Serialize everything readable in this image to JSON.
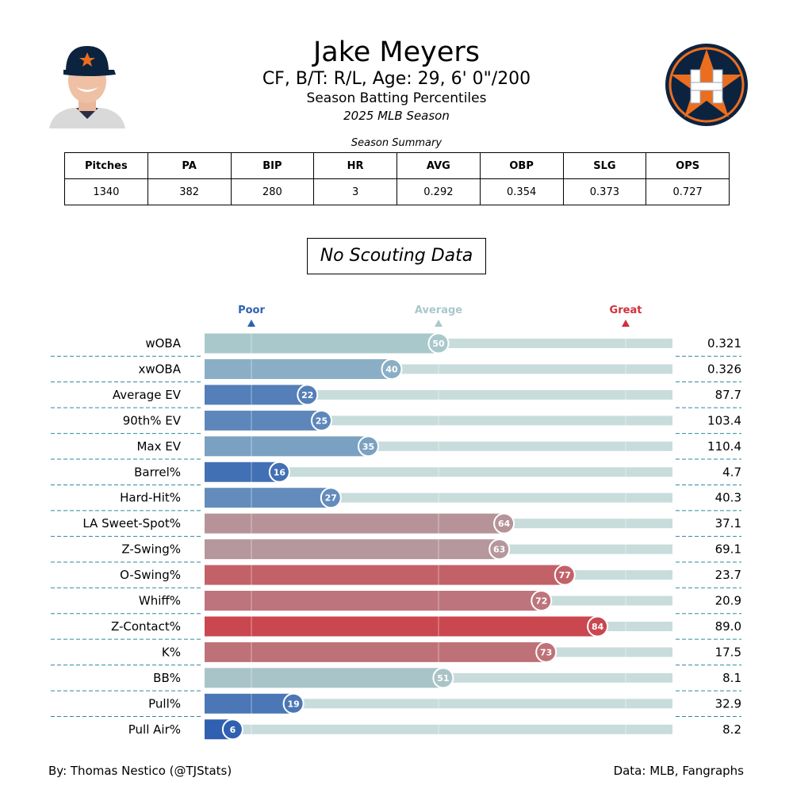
{
  "header": {
    "player_name": "Jake Meyers",
    "bio_line": "CF, B/T: R/L, Age: 29, 6' 0\"/200",
    "subtitle": "Season Batting Percentiles",
    "season": "2025 MLB Season"
  },
  "icons": {
    "headshot": "player-headshot",
    "logo": "houston-astros-logo"
  },
  "summary": {
    "caption": "Season Summary",
    "columns": [
      "Pitches",
      "PA",
      "BIP",
      "HR",
      "AVG",
      "OBP",
      "SLG",
      "OPS"
    ],
    "values": [
      "1340",
      "382",
      "280",
      "3",
      "0.292",
      "0.354",
      "0.373",
      "0.727"
    ]
  },
  "scouting": {
    "label": "No Scouting Data"
  },
  "colors": {
    "poor": "#3060b0",
    "average": "#a8c8cc",
    "great": "#d0303a",
    "track": "#c8dcdc",
    "separator": "#2e8a9a"
  },
  "chart_data": {
    "type": "bar",
    "orientation": "horizontal",
    "xlim": [
      0,
      100
    ],
    "scale_labels": [
      {
        "label": "Poor",
        "value": 10
      },
      {
        "label": "Average",
        "value": 50
      },
      {
        "label": "Great",
        "value": 90
      }
    ],
    "categories": [
      "wOBA",
      "xwOBA",
      "Average EV",
      "90th% EV",
      "Max EV",
      "Barrel%",
      "Hard-Hit%",
      "LA Sweet-Spot%",
      "Z-Swing%",
      "O-Swing%",
      "Whiff%",
      "Z-Contact%",
      "K%",
      "BB%",
      "Pull%",
      "Pull Air%"
    ],
    "percentiles": [
      50,
      40,
      22,
      25,
      35,
      16,
      27,
      64,
      63,
      77,
      72,
      84,
      73,
      51,
      19,
      6
    ],
    "stat_values": [
      "0.321",
      "0.326",
      "87.7",
      "103.4",
      "110.4",
      "4.7",
      "40.3",
      "37.1",
      "69.1",
      "23.7",
      "20.9",
      "89.0",
      "17.5",
      "8.1",
      "32.9",
      "8.2"
    ]
  },
  "footer": {
    "left": "By: Thomas Nestico (@TJStats)",
    "right": "Data: MLB, Fangraphs"
  }
}
